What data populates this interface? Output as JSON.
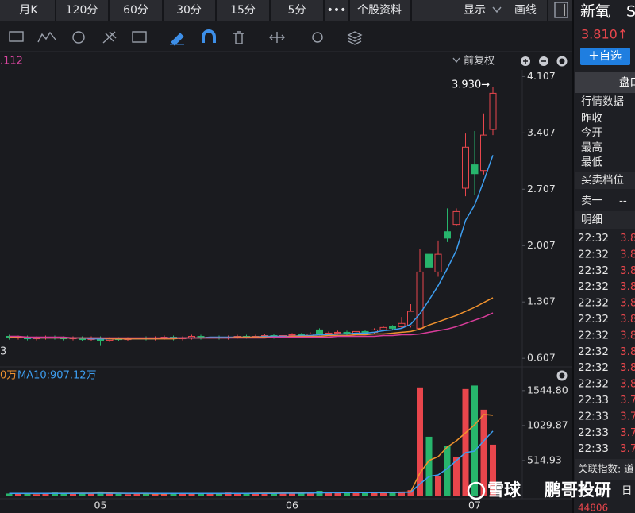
{
  "toolbar": {
    "periods": [
      "月K",
      "120分",
      "60分",
      "30分",
      "15分",
      "5分"
    ],
    "more": "•••",
    "profile": "个股资料",
    "display": "显示",
    "draw": "画线"
  },
  "chart_header": {
    "ma_fragment": ".112",
    "adjust": "前复权"
  },
  "chart_data": [
    {
      "type": "candlestick",
      "categories": [
        null,
        null,
        null,
        null,
        null,
        null,
        null,
        null,
        null,
        null,
        "05",
        null,
        null,
        null,
        null,
        null,
        null,
        null,
        null,
        null,
        null,
        null,
        null,
        null,
        null,
        null,
        null,
        null,
        null,
        null,
        null,
        "06",
        null,
        null,
        null,
        null,
        null,
        null,
        null,
        null,
        null,
        null,
        null,
        null,
        null,
        null,
        null,
        null,
        null,
        null,
        null,
        "07",
        null,
        null
      ],
      "open": [
        0.88,
        0.86,
        0.87,
        0.85,
        0.86,
        0.87,
        0.86,
        0.85,
        0.86,
        0.84,
        0.86,
        0.83,
        0.85,
        0.84,
        0.85,
        0.86,
        0.85,
        0.86,
        0.87,
        0.85,
        0.86,
        0.88,
        0.86,
        0.87,
        0.86,
        0.87,
        0.88,
        0.87,
        0.88,
        0.89,
        0.87,
        0.89,
        0.9,
        0.88,
        0.96,
        0.91,
        0.92,
        0.93,
        0.91,
        0.94,
        0.93,
        0.96,
        1.0,
        1.0,
        1.01,
        0.98,
        1.9,
        1.68,
        2.18,
        2.27,
        2.72,
        3.01,
        2.94,
        3.45
      ],
      "high": [
        0.9,
        0.89,
        0.89,
        0.88,
        0.89,
        0.89,
        0.88,
        0.88,
        0.88,
        0.88,
        0.88,
        0.87,
        0.87,
        0.87,
        0.88,
        0.88,
        0.88,
        0.89,
        0.89,
        0.88,
        0.9,
        0.9,
        0.89,
        0.89,
        0.89,
        0.9,
        0.9,
        0.9,
        0.91,
        0.91,
        0.91,
        0.92,
        0.92,
        0.93,
        0.98,
        0.94,
        0.95,
        0.95,
        0.96,
        0.96,
        0.98,
        1.01,
        1.02,
        1.12,
        1.28,
        1.97,
        2.23,
        2.07,
        2.47,
        2.47,
        3.4,
        3.43,
        3.65,
        3.98
      ],
      "low": [
        0.84,
        0.84,
        0.83,
        0.83,
        0.84,
        0.84,
        0.83,
        0.83,
        0.82,
        0.82,
        0.76,
        0.81,
        0.82,
        0.82,
        0.83,
        0.83,
        0.83,
        0.84,
        0.83,
        0.83,
        0.84,
        0.84,
        0.84,
        0.84,
        0.84,
        0.85,
        0.85,
        0.86,
        0.86,
        0.85,
        0.85,
        0.87,
        0.86,
        0.86,
        0.89,
        0.89,
        0.9,
        0.89,
        0.89,
        0.91,
        0.91,
        0.94,
        0.96,
        0.98,
        0.99,
        0.96,
        1.7,
        1.62,
        2.05,
        2.25,
        2.62,
        2.64,
        2.89,
        3.38
      ],
      "close": [
        0.86,
        0.87,
        0.85,
        0.86,
        0.87,
        0.86,
        0.85,
        0.86,
        0.84,
        0.86,
        0.83,
        0.85,
        0.84,
        0.85,
        0.86,
        0.85,
        0.86,
        0.87,
        0.85,
        0.86,
        0.88,
        0.86,
        0.87,
        0.86,
        0.87,
        0.88,
        0.87,
        0.88,
        0.89,
        0.87,
        0.89,
        0.9,
        0.88,
        0.91,
        0.91,
        0.92,
        0.93,
        0.91,
        0.94,
        0.93,
        0.96,
        0.99,
        0.98,
        1.04,
        1.19,
        1.68,
        1.74,
        1.9,
        2.1,
        2.43,
        3.23,
        2.9,
        3.38,
        3.9
      ],
      "up_color": "#e8464c",
      "down_color": "#27b56c",
      "lines": [
        {
          "color": "#3d9ef0",
          "values": [
            0.87,
            0.87,
            0.86,
            0.86,
            0.86,
            0.86,
            0.86,
            0.86,
            0.86,
            0.85,
            0.85,
            0.85,
            0.85,
            0.85,
            0.85,
            0.85,
            0.85,
            0.86,
            0.86,
            0.86,
            0.86,
            0.86,
            0.87,
            0.87,
            0.87,
            0.87,
            0.87,
            0.87,
            0.88,
            0.88,
            0.88,
            0.88,
            0.89,
            0.89,
            0.9,
            0.9,
            0.91,
            0.91,
            0.92,
            0.92,
            0.93,
            0.95,
            0.96,
            0.98,
            1.03,
            1.16,
            1.33,
            1.51,
            1.72,
            1.95,
            2.32,
            2.51,
            2.81,
            3.13
          ]
        },
        {
          "color": "#f0922e",
          "values": [
            0.87,
            0.87,
            0.87,
            0.86,
            0.86,
            0.86,
            0.86,
            0.86,
            0.86,
            0.86,
            0.86,
            0.85,
            0.85,
            0.85,
            0.85,
            0.85,
            0.85,
            0.85,
            0.85,
            0.86,
            0.86,
            0.86,
            0.86,
            0.86,
            0.86,
            0.87,
            0.87,
            0.87,
            0.87,
            0.87,
            0.87,
            0.88,
            0.88,
            0.88,
            0.88,
            0.89,
            0.89,
            0.89,
            0.9,
            0.9,
            0.91,
            0.91,
            0.92,
            0.93,
            0.94,
            0.97,
            1.02,
            1.06,
            1.1,
            1.14,
            1.19,
            1.24,
            1.3,
            1.36
          ]
        },
        {
          "color": "#d83c9a",
          "values": [
            0.88,
            0.88,
            0.87,
            0.87,
            0.87,
            0.87,
            0.87,
            0.86,
            0.86,
            0.86,
            0.86,
            0.86,
            0.86,
            0.86,
            0.86,
            0.86,
            0.86,
            0.86,
            0.86,
            0.86,
            0.86,
            0.86,
            0.86,
            0.86,
            0.86,
            0.86,
            0.86,
            0.86,
            0.86,
            0.87,
            0.87,
            0.87,
            0.87,
            0.87,
            0.87,
            0.87,
            0.88,
            0.88,
            0.88,
            0.88,
            0.88,
            0.89,
            0.89,
            0.9,
            0.9,
            0.91,
            0.93,
            0.95,
            0.97,
            1.0,
            1.04,
            1.08,
            1.12,
            1.17
          ]
        }
      ],
      "ylim": [
        0.52,
        4.19
      ],
      "yticks": [
        0.607,
        1.307,
        2.007,
        2.707,
        3.407,
        4.107
      ],
      "annotation": "3.930→",
      "left_label": "3"
    },
    {
      "type": "bar",
      "legend_fragment": "0万",
      "legend": "MA10:907.12万",
      "values": [
        30,
        25,
        40,
        20,
        35,
        45,
        30,
        25,
        40,
        35,
        60,
        30,
        25,
        20,
        30,
        35,
        25,
        30,
        40,
        30,
        25,
        35,
        30,
        25,
        45,
        30,
        35,
        40,
        30,
        35,
        40,
        45,
        35,
        50,
        70,
        40,
        45,
        35,
        50,
        45,
        40,
        55,
        45,
        60,
        80,
        1592,
        866,
        281,
        725,
        573,
        1568,
        1620,
        1264,
        749
      ],
      "lines": [
        {
          "color": "#f0922e",
          "values": [
            32,
            31,
            30,
            30,
            32,
            34,
            34,
            35,
            35,
            35,
            40,
            38,
            35,
            33,
            33,
            30,
            28,
            28,
            32,
            31,
            30,
            32,
            32,
            29,
            32,
            33,
            33,
            35,
            36,
            36,
            38,
            38,
            38,
            40,
            48,
            48,
            48,
            48,
            48,
            47,
            42,
            45,
            43,
            49,
            56,
            330,
            515,
            573,
            714,
            807,
            924,
            1041,
            1194,
            1182
          ]
        },
        {
          "color": "#3d9ef0",
          "values": [
            33,
            33,
            32,
            32,
            33,
            33,
            33,
            33,
            34,
            34,
            35,
            34,
            34,
            34,
            34,
            34,
            33,
            32,
            32,
            31,
            31,
            31,
            32,
            31,
            32,
            32,
            33,
            33,
            33,
            33,
            35,
            35,
            35,
            37,
            40,
            42,
            42,
            43,
            44,
            45,
            45,
            46,
            46,
            47,
            50,
            170,
            281,
            304,
            398,
            515,
            632,
            655,
            807,
            948
          ]
        }
      ],
      "ylim": [
        0,
        1660
      ],
      "yticks": [
        {
          "value": 514.93,
          "label": "514.93"
        },
        {
          "value": 1029.87,
          "label": "1029.87"
        },
        {
          "value": 1544.8,
          "label": "1544.80"
        }
      ]
    }
  ],
  "sidebar": {
    "name": "新氧",
    "code_fragment": "S",
    "price": "3.810↑",
    "watch": "＋自选",
    "panel_tab": "盘口",
    "quote_title": "行情数据",
    "quote_rows": [
      "昨收",
      "今开",
      "最高",
      "最低"
    ],
    "book_title": "买卖档位",
    "ask1": "卖一",
    "ask1_value": "--",
    "detail_title": "明细",
    "details": [
      {
        "time": "22:32",
        "price": "3.8"
      },
      {
        "time": "22:32",
        "price": "3.8"
      },
      {
        "time": "22:32",
        "price": "3.8"
      },
      {
        "time": "22:32",
        "price": "3.8"
      },
      {
        "time": "22:32",
        "price": "3.8"
      },
      {
        "time": "22:32",
        "price": "3.8"
      },
      {
        "time": "22:32",
        "price": "3.8"
      },
      {
        "time": "22:32",
        "price": "3.8"
      },
      {
        "time": "22:32",
        "price": "3.8"
      },
      {
        "time": "22:32",
        "price": "3.8"
      },
      {
        "time": "22:33",
        "price": "3.7"
      },
      {
        "time": "22:33",
        "price": "3.7"
      },
      {
        "time": "22:33",
        "price": "3.7"
      },
      {
        "time": "22:33",
        "price": "3.7"
      }
    ],
    "index_label": "关联指数: 道",
    "day_fragment": "日",
    "index_value": "44806"
  },
  "watermark": [
    "雪球",
    "鹏哥投研"
  ]
}
